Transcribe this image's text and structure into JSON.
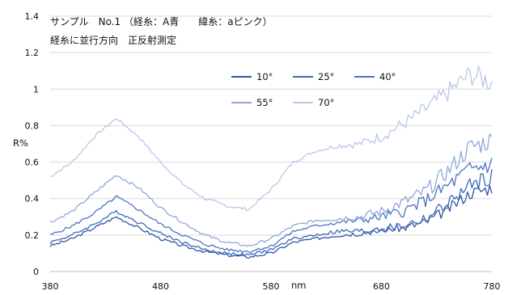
{
  "title": {
    "line1": "サンプル　No.1 （経糸：A青　　緯糸：aピンク）",
    "line2": "経糸に並行方向　正反射測定"
  },
  "chart_data": {
    "type": "line",
    "xlabel": "nm",
    "ylabel": "R%",
    "xlim": [
      380,
      780
    ],
    "ylim": [
      0,
      1.4
    ],
    "x_ticks": [
      "380",
      "480",
      "580",
      "680",
      "780"
    ],
    "y_ticks": [
      "0",
      "0.2",
      "0.4",
      "0.6",
      "0.8",
      "1",
      "1.2",
      "1.4"
    ],
    "legend_position": "upper-center-right",
    "series": [
      {
        "name": "10°",
        "color": "#2f56a6",
        "x": [
          380,
          400,
          420,
          440,
          460,
          480,
          500,
          520,
          540,
          560,
          580,
          600,
          620,
          640,
          660,
          680,
          700,
          720,
          740,
          760,
          780
        ],
        "y": [
          0.14,
          0.18,
          0.24,
          0.3,
          0.24,
          0.18,
          0.14,
          0.11,
          0.09,
          0.08,
          0.1,
          0.16,
          0.18,
          0.2,
          0.21,
          0.23,
          0.24,
          0.27,
          0.34,
          0.43,
          0.46
        ]
      },
      {
        "name": "25°",
        "color": "#3f67b7",
        "x": [
          380,
          400,
          420,
          440,
          460,
          480,
          500,
          520,
          540,
          560,
          580,
          600,
          620,
          640,
          660,
          680,
          700,
          720,
          740,
          760,
          780
        ],
        "y": [
          0.16,
          0.2,
          0.26,
          0.33,
          0.27,
          0.21,
          0.16,
          0.12,
          0.1,
          0.09,
          0.12,
          0.18,
          0.2,
          0.22,
          0.22,
          0.23,
          0.25,
          0.29,
          0.37,
          0.47,
          0.52
        ]
      },
      {
        "name": "40°",
        "color": "#4a73c4",
        "x": [
          380,
          400,
          420,
          440,
          460,
          480,
          500,
          520,
          540,
          560,
          580,
          600,
          620,
          640,
          660,
          680,
          700,
          720,
          740,
          760,
          780
        ],
        "y": [
          0.2,
          0.25,
          0.32,
          0.41,
          0.34,
          0.26,
          0.2,
          0.15,
          0.12,
          0.11,
          0.14,
          0.22,
          0.25,
          0.27,
          0.28,
          0.3,
          0.33,
          0.39,
          0.47,
          0.56,
          0.59
        ]
      },
      {
        "name": "55°",
        "color": "#8fa7d8",
        "x": [
          380,
          400,
          420,
          440,
          460,
          480,
          500,
          520,
          540,
          560,
          580,
          600,
          620,
          640,
          660,
          680,
          700,
          720,
          740,
          760,
          780
        ],
        "y": [
          0.27,
          0.33,
          0.43,
          0.53,
          0.46,
          0.35,
          0.27,
          0.2,
          0.16,
          0.14,
          0.18,
          0.25,
          0.28,
          0.29,
          0.3,
          0.33,
          0.38,
          0.44,
          0.55,
          0.68,
          0.72
        ]
      },
      {
        "name": "70°",
        "color": "#b8c8e8",
        "x": [
          380,
          400,
          420,
          440,
          460,
          480,
          500,
          520,
          540,
          560,
          580,
          600,
          620,
          640,
          660,
          680,
          700,
          720,
          740,
          760,
          780
        ],
        "y": [
          0.52,
          0.6,
          0.74,
          0.84,
          0.74,
          0.6,
          0.48,
          0.4,
          0.36,
          0.34,
          0.45,
          0.6,
          0.66,
          0.69,
          0.7,
          0.74,
          0.81,
          0.89,
          0.98,
          1.08,
          1.04
        ]
      }
    ]
  }
}
